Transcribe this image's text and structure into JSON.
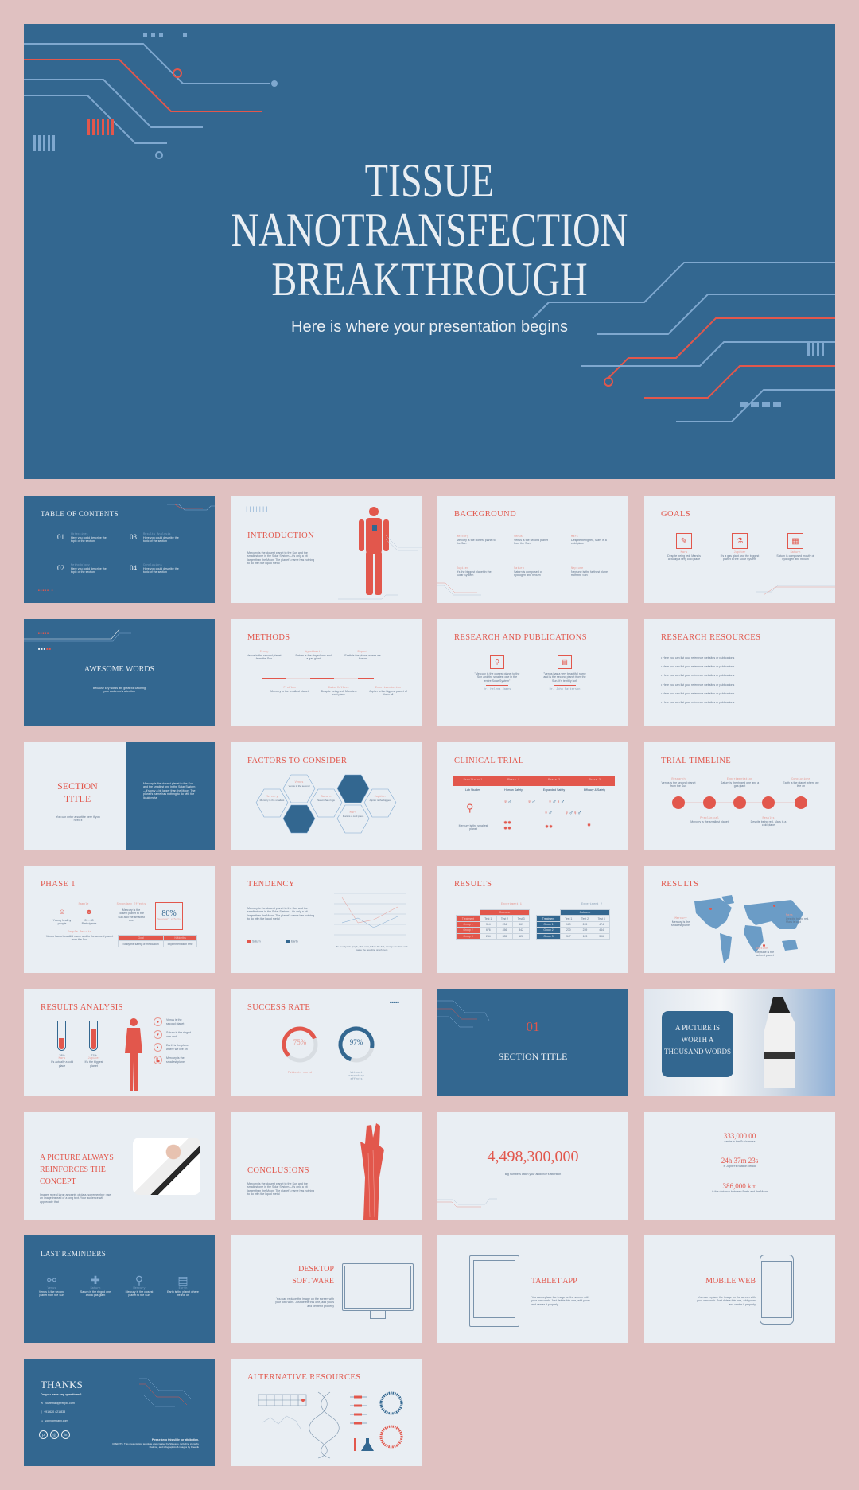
{
  "colors": {
    "background": "#e0c1c1",
    "blue": "#336790",
    "red": "#e2574c",
    "light": "#e9eef3"
  },
  "main": {
    "title_lines": [
      "TISSUE",
      "NANOTRANSFECTION",
      "BREAKTHROUGH"
    ],
    "subtitle": "Here is where your presentation begins"
  },
  "toc": {
    "title": "TABLE OF CONTENTS",
    "items": [
      {
        "num": "01",
        "heading": "Objectives",
        "text": "Here you could describe the topic of the section"
      },
      {
        "num": "02",
        "heading": "Methodology",
        "text": "Here you could describe the topic of the section"
      },
      {
        "num": "03",
        "heading": "Results Analysis",
        "text": "Here you could describe the topic of the section"
      },
      {
        "num": "04",
        "heading": "Conclusions",
        "text": "Here you could describe the topic of the section"
      }
    ]
  },
  "intro": {
    "title": "INTRODUCTION",
    "text": "Mercury is the closest planet to the Sun and the smallest one in the Solar System—it's only a bit larger than the Moon. The planet's name has nothing to do with the liquid metal"
  },
  "background": {
    "title": "BACKGROUND",
    "items": [
      {
        "heading": "Mercury",
        "text": "Mercury is the closest planet to the Sun"
      },
      {
        "heading": "Venus",
        "text": "Venus is the second planet from the Sun"
      },
      {
        "heading": "Mars",
        "text": "Despite being red, Mars is a cold place"
      },
      {
        "heading": "Jupiter",
        "text": "It's the biggest planet in the Solar System"
      },
      {
        "heading": "Saturn",
        "text": "Saturn is composed of hydrogen and helium"
      },
      {
        "heading": "Neptune",
        "text": "Neptune is the farthest planet from the Sun"
      }
    ]
  },
  "goals": {
    "title": "GOALS",
    "items": [
      {
        "heading": "Mars",
        "text": "Despite being red, Mars is actually a very cold place",
        "icon": "wrench-icon"
      },
      {
        "heading": "Jupiter",
        "text": "It's a gas giant and the biggest planet in the Solar System",
        "icon": "test-tube-icon"
      },
      {
        "heading": "Saturn",
        "text": "Saturn is composed mostly of hydrogen and helium",
        "icon": "chip-icon"
      }
    ]
  },
  "awesome": {
    "title": "AWESOME WORDS",
    "text": "Because key words are great for catching your audience's attention"
  },
  "methods": {
    "title": "METHODS",
    "top": [
      {
        "heading": "Study",
        "text": "Venus is the second planet from the Sun"
      },
      {
        "heading": "Hypothesis",
        "text": "Saturn is the ringed one and a gas giant"
      },
      {
        "heading": "Report",
        "text": "Earth is the planet where we live on"
      }
    ],
    "bottom": [
      {
        "heading": "Problem",
        "text": "Mercury is the smallest planet"
      },
      {
        "heading": "Data Collect",
        "text": "Despite being red, Mars is a cold place"
      },
      {
        "heading": "Experimentation",
        "text": "Jupiter is the biggest planet of them all"
      }
    ]
  },
  "research": {
    "title": "RESEARCH AND PUBLICATIONS",
    "quotes": [
      {
        "text": "\"Mercury is the closest planet to the Sun and the smallest one in the entire Solar System\"",
        "author": "Dr. Helena James"
      },
      {
        "text": "\"Venus has a very beautiful name and is the second planet from the Sun. It's terribly hot\"",
        "author": "Dr. John Patterson"
      }
    ]
  },
  "resources": {
    "title": "RESEARCH RESOURCES",
    "items": [
      "Here you can list your reference websites or publications",
      "Here you can list your reference websites or publications",
      "Here you can list your reference websites or publications",
      "Here you can list your reference websites or publications",
      "Here you can list your reference websites or publications",
      "Here you can list your reference websites or publications"
    ]
  },
  "section": {
    "title_lines": [
      "SECTION",
      "TITLE"
    ],
    "subtitle": "You can enter a subtitle here if you need it",
    "text": "Mercury is the closest planet to the Sun and the smallest one in the Solar System—it's only a bit larger than the Moon. The planet's name has nothing to do with the liquid metal"
  },
  "factors": {
    "title": "FACTORS TO CONSIDER",
    "items": [
      {
        "heading": "Mercury",
        "text": "Mercury is the smallest"
      },
      {
        "heading": "Venus",
        "text": "Venus is the second"
      },
      {
        "heading": "Saturn",
        "text": "Saturn has rings"
      },
      {
        "heading": "Mars",
        "text": "Mars is a cold place"
      },
      {
        "heading": "Jupiter",
        "text": "Jupiter is the biggest"
      }
    ]
  },
  "clinical": {
    "title": "CLINICAL TRIAL",
    "headers": [
      "Preclinical",
      "Phase 1",
      "Phase 2",
      "Phase 3"
    ],
    "subs": [
      "Lab Studies",
      "Human Safety",
      "Expanded Safety",
      "Efficacy & Safety"
    ],
    "note": "Mercury is the smallest planet"
  },
  "timeline": {
    "title": "TRIAL TIMELINE",
    "top": [
      {
        "heading": "Research",
        "text": "Venus is the second planet from the Sun"
      },
      {
        "heading": "Experimentation",
        "text": "Saturn is the ringed one and a gas giant"
      },
      {
        "heading": "Conclusions",
        "text": "Earth is the planet where we live on"
      }
    ],
    "bottom": [
      {
        "heading": "Preclinical",
        "text": "Mercury is the smallest planet"
      },
      {
        "heading": "Results",
        "text": "Despite being red, Mars is a cold place"
      }
    ]
  },
  "phase": {
    "title": "PHASE 1",
    "sample_label": "Sample",
    "sample": [
      "Young healthy people",
      "20 - 80 Participants"
    ],
    "secondary_label": "Secondary Effects",
    "secondary_text": "Mercury is the closest planet to the Sun and the smallest one",
    "percent": "80%",
    "percent_label": "Secondary effects",
    "results_label": "Sample Results",
    "results_text": "Venus has a beautiful name and is the second planet from the Sun",
    "table_headers": [
      "Goal",
      "N Months"
    ],
    "table_cells": [
      "Study the safety of medication",
      "Experimentation time"
    ]
  },
  "tendency": {
    "title": "TENDENCY",
    "text": "Mercury is the closest planet to the Sun and the smallest one in the Solar System—it's only a bit larger than the Moon. The planet's name has nothing to do with the liquid metal",
    "legend": [
      "Saturn",
      "Earth"
    ],
    "note": "To modify this graph, click on it, follow the link, change the data and paste the resulting graph here"
  },
  "results_table": {
    "title": "RESULTS",
    "tables": [
      {
        "caption": "Experiment 1",
        "outcome": "Outcome",
        "headers": [
          "Treatment",
          "Test 1",
          "Test 2",
          "Test 3"
        ],
        "rows": [
          [
            "Group 1",
            "314",
            "234",
            "567"
          ],
          [
            "Group 2",
            "676",
            "456",
            "342"
          ],
          [
            "Group 3",
            "234",
            "335",
            "128"
          ]
        ]
      },
      {
        "caption": "Experiment 2",
        "outcome": "Outcome",
        "headers": [
          "Treatment",
          "Test 1",
          "Test 2",
          "Test 3"
        ],
        "rows": [
          [
            "Group 1",
            "169",
            "245",
            "474"
          ],
          [
            "Group 2",
            "230",
            "239",
            "444"
          ],
          [
            "Group 3",
            "347",
            "123",
            "396"
          ]
        ]
      }
    ]
  },
  "map": {
    "title": "RESULTS",
    "markers": [
      {
        "heading": "Mercury",
        "text": "Mercury is the smallest planet"
      },
      {
        "heading": "Mars",
        "text": "Despite being red, Mars is cold"
      },
      {
        "heading": "Neptune",
        "text": "Neptune is the farthest planet"
      }
    ]
  },
  "analysis": {
    "title": "RESULTS ANALYSIS",
    "tubes": [
      {
        "value": "38%",
        "fill": 38,
        "label": "Mars",
        "text": "It's actually a cold place"
      },
      {
        "value": "71%",
        "fill": 71,
        "label": "Jupiter",
        "text": "It's the biggest planet"
      }
    ],
    "organs": [
      "Venus is the second planet",
      "Saturn is the ringed one and",
      "Earth is the planet where we live on",
      "Mercury is the smallest planet"
    ]
  },
  "success": {
    "title": "SUCCESS RATE",
    "items": [
      {
        "value": "75%",
        "fill": 75,
        "label": "Patients cured"
      },
      {
        "value": "97%",
        "fill": 97,
        "label": "Without secondary effects"
      }
    ]
  },
  "section2": {
    "number": "01",
    "title": "SECTION TITLE"
  },
  "picture": {
    "title": "A PICTURE IS WORTH A THOUSAND WORDS"
  },
  "picture2": {
    "title": "A PICTURE ALWAYS REINFORCES THE CONCEPT",
    "text": "Images reveal large amounts of data, so remember: use an image instead of a long text. Your audience will appreciate that"
  },
  "conclusions": {
    "title": "CONCLUSIONS",
    "text": "Mercury is the closest planet to the Sun and the smallest one in the Solar System—it's only a bit larger than the Moon. The planet's name has nothing to do with the liquid metal"
  },
  "bignumber": {
    "value": "4,498,300,000",
    "text": "Big numbers catch your audience's attention"
  },
  "stats": [
    {
      "value": "333,000.00",
      "text": "earths is the Sun's mass"
    },
    {
      "value": "24h 37m 23s",
      "text": "is Jupiter's rotation period"
    },
    {
      "value": "386,000 km",
      "text": "is the distance between Earth and the Moon"
    }
  ],
  "reminders": {
    "title": "LAST REMINDERS",
    "items": [
      {
        "heading": "Venus",
        "text": "Venus is the second planet from the Sun"
      },
      {
        "heading": "Saturn",
        "text": "Saturn is the ringed one and a gas giant"
      },
      {
        "heading": "Mercury",
        "text": "Mercury is the closest planet to the Sun"
      },
      {
        "heading": "Earth",
        "text": "Earth is the planet where we live on"
      }
    ]
  },
  "desktop": {
    "title_lines": [
      "DESKTOP",
      "SOFTWARE"
    ],
    "text": "You can replace the image on the screen with your own work. Just delete this one, add yours and center it properly"
  },
  "tablet": {
    "title": "TABLET APP",
    "text": "You can replace the image on the screen with your own work. Just delete this one, add yours and center it properly"
  },
  "mobile": {
    "title": "MOBILE WEB",
    "text": "You can replace the image on the screen with your own work. Just delete this one, add yours and center it properly"
  },
  "thanks": {
    "title": "THANKS",
    "question": "Do you have any questions?",
    "email": "youremail@freepik.com",
    "phone": "+91 620 421 838",
    "web": "yourcompany.com",
    "keep": "Please keep this slide for attribution.",
    "credits": "CREDITS: This presentation template was created by Slidesgo, including icons by Flaticon, and infographics & images by Freepik"
  },
  "alt": {
    "title": "ALTERNATIVE RESOURCES"
  }
}
